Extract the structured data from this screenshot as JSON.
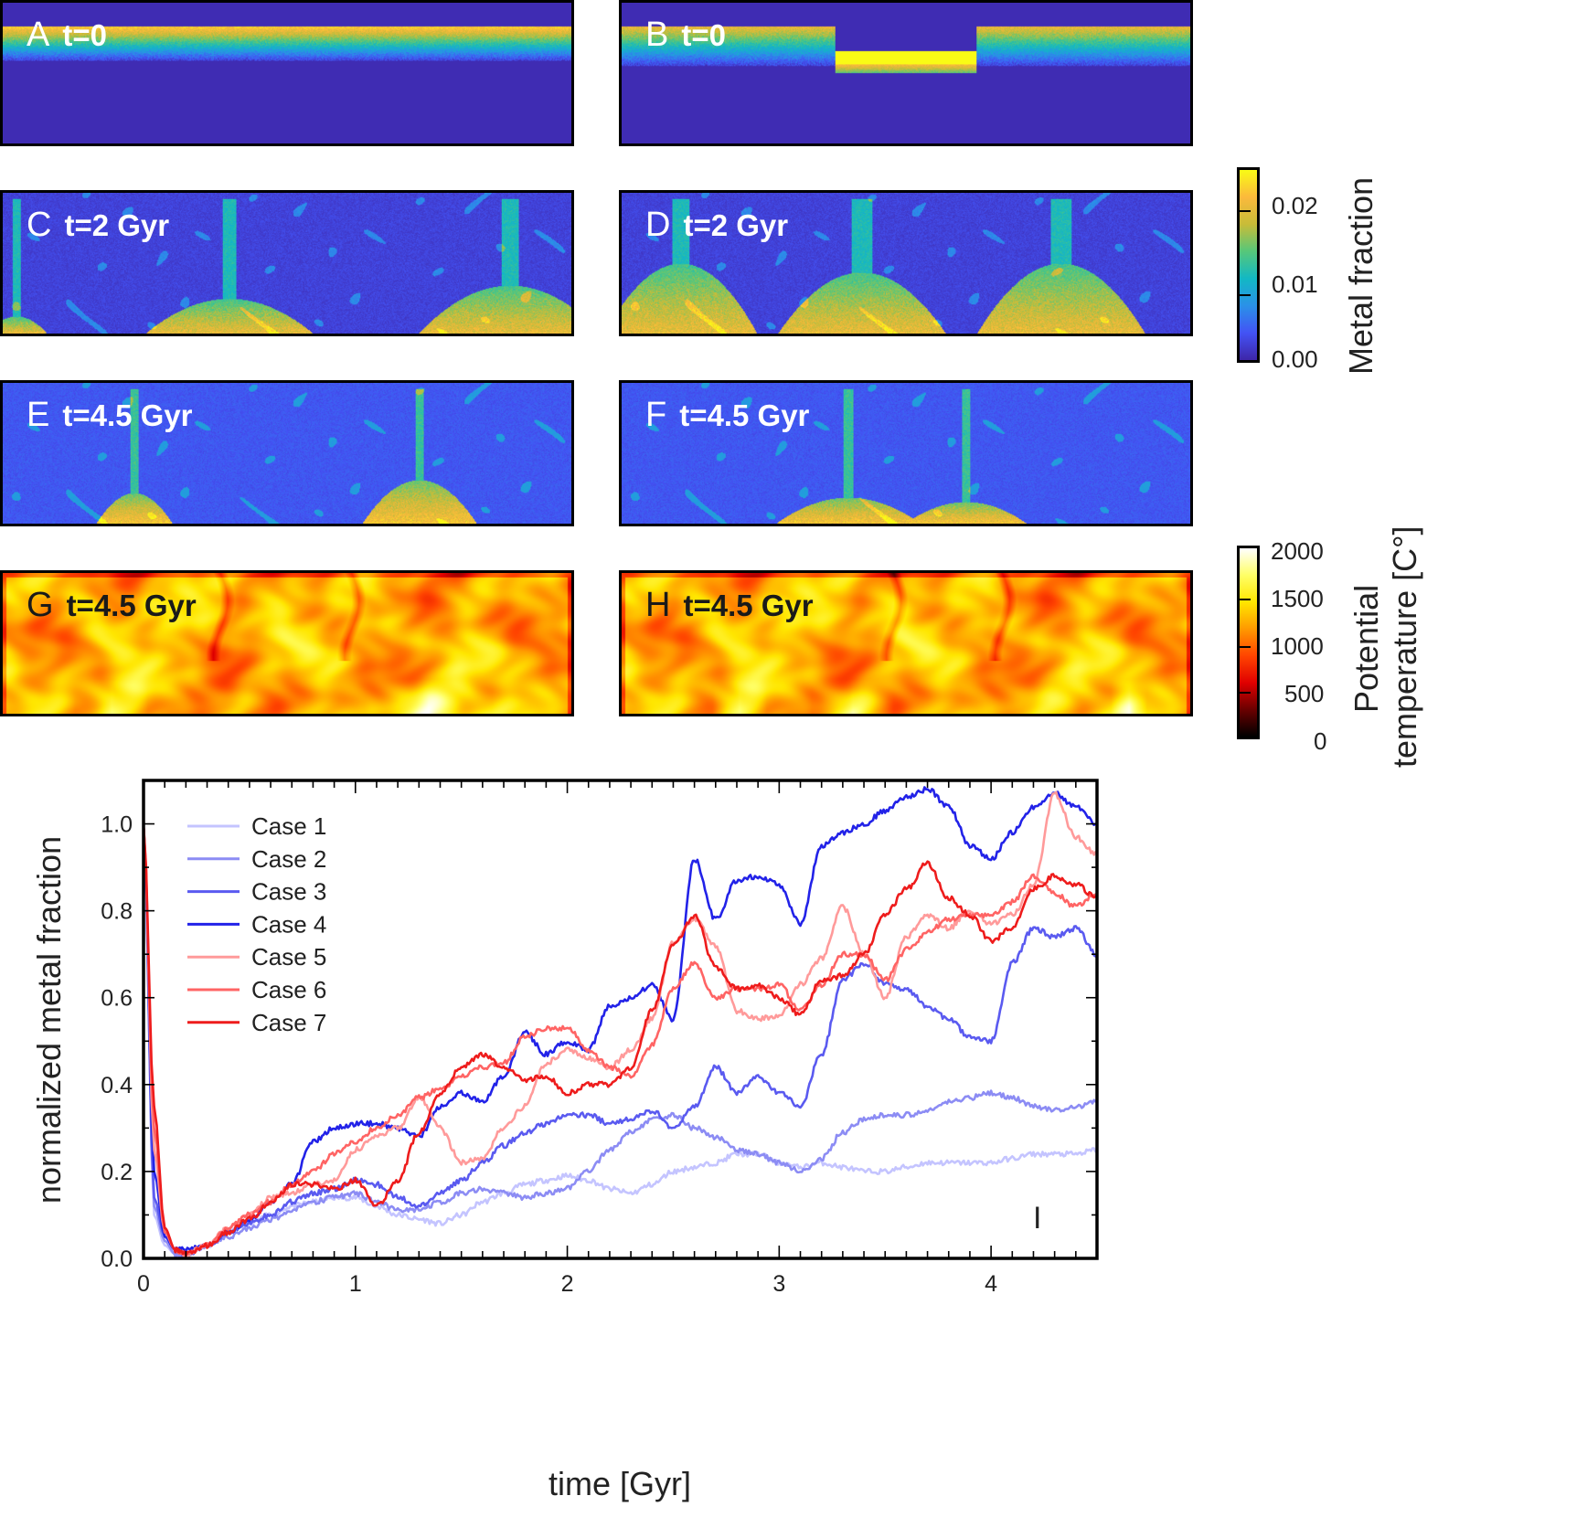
{
  "panels": [
    {
      "id": "A",
      "letter": "A",
      "time": "t=0",
      "kind": "metal",
      "scenario": "layer"
    },
    {
      "id": "B",
      "letter": "B",
      "time": "t=0",
      "kind": "metal",
      "scenario": "layer-pool"
    },
    {
      "id": "C",
      "letter": "C",
      "time": "t=2 Gyr",
      "kind": "metal",
      "scenario": "plume-left"
    },
    {
      "id": "D",
      "letter": "D",
      "time": "t=2 Gyr",
      "kind": "metal",
      "scenario": "plume-right"
    },
    {
      "id": "E",
      "letter": "E",
      "time": "t=4.5 Gyr",
      "kind": "metal",
      "scenario": "late-left"
    },
    {
      "id": "F",
      "letter": "F",
      "time": "t=4.5 Gyr",
      "kind": "metal",
      "scenario": "late-right"
    },
    {
      "id": "G",
      "letter": "G",
      "time": "t=4.5 Gyr",
      "kind": "temperature",
      "scenario": "temp-left"
    },
    {
      "id": "H",
      "letter": "H",
      "time": "t=4.5 Gyr",
      "kind": "temperature",
      "scenario": "temp-right"
    }
  ],
  "colorbars": {
    "metal": {
      "title": "Metal fraction",
      "ticks": [
        "0.00",
        "0.01",
        "0.02"
      ],
      "range": [
        0,
        0.025
      ],
      "colors": [
        "#3e26a8",
        "#4353f5",
        "#2a91e8",
        "#12b8c4",
        "#56c77a",
        "#c8bc38",
        "#fbb93c",
        "#f9fb15"
      ]
    },
    "temperature": {
      "title_line1": "Potential",
      "title_line2": "temperature [C°]",
      "ticks": [
        "0",
        "500",
        "1000",
        "1500",
        "2000"
      ],
      "range": [
        0,
        2000
      ],
      "colors": [
        "#000000",
        "#6a0000",
        "#e00000",
        "#ff4400",
        "#ff9900",
        "#ffe600",
        "#ffff66",
        "#ffffff"
      ]
    }
  },
  "chart_data": {
    "type": "line",
    "title": "",
    "panel_label": "I",
    "xlabel": "time [Gyr]",
    "ylabel": "normalized metal fraction",
    "xlim": [
      0,
      4.5
    ],
    "ylim": [
      0,
      1.1
    ],
    "xticks": [
      "0",
      "1",
      "2",
      "3",
      "4"
    ],
    "yticks": [
      "0.0",
      "0.2",
      "0.4",
      "0.6",
      "0.8",
      "1.0"
    ],
    "legend_position": "top-left",
    "x": [
      0,
      0.05,
      0.1,
      0.15,
      0.2,
      0.3,
      0.4,
      0.5,
      0.6,
      0.7,
      0.8,
      0.9,
      1.0,
      1.1,
      1.2,
      1.3,
      1.4,
      1.5,
      1.6,
      1.7,
      1.8,
      1.9,
      2.0,
      2.1,
      2.2,
      2.3,
      2.4,
      2.5,
      2.6,
      2.7,
      2.8,
      2.9,
      3.0,
      3.1,
      3.2,
      3.3,
      3.4,
      3.5,
      3.6,
      3.7,
      3.8,
      3.9,
      4.0,
      4.1,
      4.2,
      4.3,
      4.4,
      4.5
    ],
    "series": [
      {
        "name": "Case 1",
        "color": "#c4c4ff",
        "values": [
          1.0,
          0.1,
          0.03,
          0.01,
          0.01,
          0.03,
          0.06,
          0.08,
          0.1,
          0.12,
          0.13,
          0.14,
          0.14,
          0.12,
          0.1,
          0.09,
          0.08,
          0.1,
          0.13,
          0.15,
          0.17,
          0.18,
          0.19,
          0.18,
          0.16,
          0.15,
          0.17,
          0.2,
          0.21,
          0.22,
          0.24,
          0.24,
          0.22,
          0.21,
          0.22,
          0.21,
          0.2,
          0.2,
          0.21,
          0.22,
          0.22,
          0.22,
          0.22,
          0.23,
          0.24,
          0.24,
          0.24,
          0.25
        ]
      },
      {
        "name": "Case 2",
        "color": "#8c8cf4",
        "values": [
          1.0,
          0.12,
          0.04,
          0.01,
          0.01,
          0.03,
          0.05,
          0.07,
          0.09,
          0.11,
          0.13,
          0.14,
          0.15,
          0.13,
          0.11,
          0.11,
          0.13,
          0.15,
          0.16,
          0.15,
          0.14,
          0.15,
          0.16,
          0.2,
          0.25,
          0.29,
          0.32,
          0.33,
          0.3,
          0.28,
          0.25,
          0.24,
          0.22,
          0.2,
          0.23,
          0.29,
          0.32,
          0.33,
          0.33,
          0.34,
          0.36,
          0.37,
          0.38,
          0.37,
          0.35,
          0.34,
          0.35,
          0.36
        ]
      },
      {
        "name": "Case 3",
        "color": "#5a5af0",
        "values": [
          1.0,
          0.14,
          0.05,
          0.02,
          0.01,
          0.03,
          0.06,
          0.08,
          0.1,
          0.13,
          0.15,
          0.16,
          0.18,
          0.17,
          0.14,
          0.12,
          0.15,
          0.18,
          0.22,
          0.26,
          0.29,
          0.31,
          0.33,
          0.33,
          0.31,
          0.32,
          0.34,
          0.3,
          0.35,
          0.44,
          0.38,
          0.42,
          0.38,
          0.35,
          0.47,
          0.64,
          0.68,
          0.63,
          0.62,
          0.58,
          0.55,
          0.51,
          0.5,
          0.68,
          0.76,
          0.74,
          0.76,
          0.7
        ]
      },
      {
        "name": "Case 4",
        "color": "#2222e8",
        "values": [
          1.0,
          0.2,
          0.05,
          0.02,
          0.02,
          0.03,
          0.06,
          0.09,
          0.13,
          0.17,
          0.27,
          0.3,
          0.31,
          0.31,
          0.3,
          0.28,
          0.35,
          0.38,
          0.36,
          0.42,
          0.52,
          0.47,
          0.5,
          0.48,
          0.58,
          0.6,
          0.63,
          0.55,
          0.92,
          0.78,
          0.87,
          0.88,
          0.86,
          0.77,
          0.95,
          0.98,
          1.0,
          1.03,
          1.06,
          1.08,
          1.04,
          0.95,
          0.92,
          0.98,
          1.04,
          1.07,
          1.04,
          1.0
        ]
      },
      {
        "name": "Case 5",
        "color": "#ff9a9a",
        "values": [
          1.0,
          0.25,
          0.06,
          0.02,
          0.01,
          0.03,
          0.07,
          0.1,
          0.14,
          0.15,
          0.17,
          0.18,
          0.25,
          0.28,
          0.3,
          0.37,
          0.3,
          0.22,
          0.23,
          0.3,
          0.35,
          0.45,
          0.48,
          0.46,
          0.44,
          0.48,
          0.55,
          0.73,
          0.78,
          0.72,
          0.57,
          0.55,
          0.56,
          0.63,
          0.69,
          0.81,
          0.7,
          0.6,
          0.74,
          0.79,
          0.76,
          0.8,
          0.77,
          0.79,
          0.86,
          1.07,
          0.97,
          0.93
        ]
      },
      {
        "name": "Case 6",
        "color": "#ff6464",
        "values": [
          1.0,
          0.3,
          0.06,
          0.02,
          0.01,
          0.03,
          0.07,
          0.1,
          0.13,
          0.17,
          0.2,
          0.24,
          0.27,
          0.3,
          0.33,
          0.37,
          0.39,
          0.42,
          0.44,
          0.45,
          0.51,
          0.53,
          0.53,
          0.48,
          0.44,
          0.42,
          0.49,
          0.62,
          0.68,
          0.6,
          0.62,
          0.62,
          0.63,
          0.57,
          0.63,
          0.7,
          0.7,
          0.64,
          0.71,
          0.75,
          0.78,
          0.79,
          0.79,
          0.82,
          0.88,
          0.84,
          0.81,
          0.84
        ]
      },
      {
        "name": "Case 7",
        "color": "#ee1c1c",
        "values": [
          1.0,
          0.35,
          0.07,
          0.02,
          0.01,
          0.03,
          0.06,
          0.09,
          0.13,
          0.17,
          0.17,
          0.16,
          0.18,
          0.12,
          0.18,
          0.29,
          0.38,
          0.44,
          0.47,
          0.44,
          0.41,
          0.42,
          0.38,
          0.4,
          0.4,
          0.44,
          0.57,
          0.72,
          0.79,
          0.67,
          0.62,
          0.63,
          0.6,
          0.56,
          0.64,
          0.65,
          0.7,
          0.79,
          0.85,
          0.91,
          0.83,
          0.79,
          0.73,
          0.76,
          0.85,
          0.88,
          0.86,
          0.83
        ]
      }
    ]
  }
}
